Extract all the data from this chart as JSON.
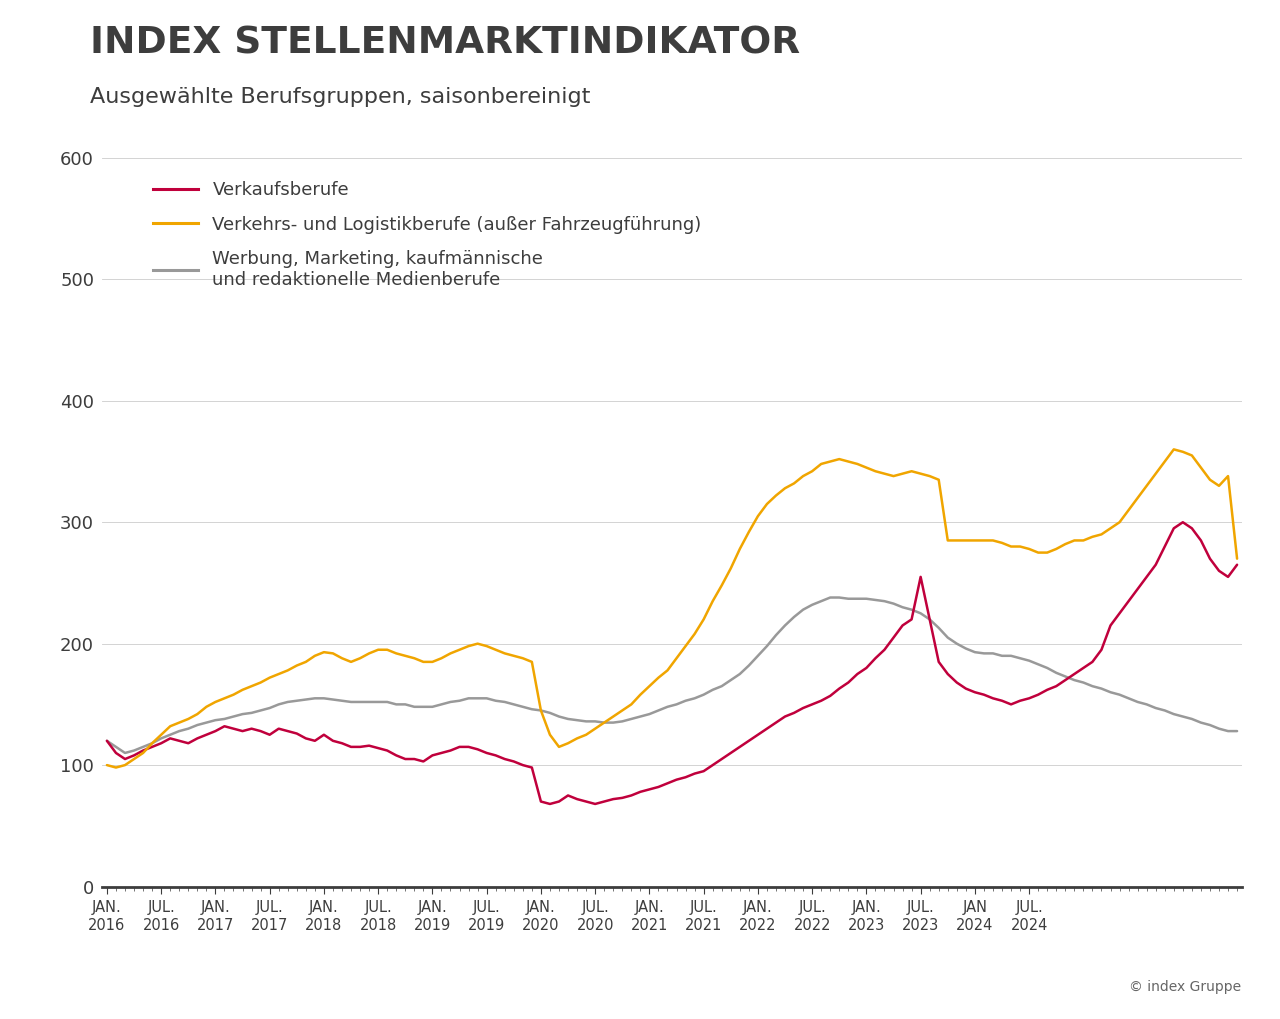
{
  "title": "INDEX STELLENMARKTINDIKATOR",
  "subtitle": "Ausgewählte Berufsgruppen, saisonbereinigt",
  "copyright": "© index Gruppe",
  "background_color": "#ffffff",
  "title_color": "#3d3d3d",
  "ylim": [
    0,
    600
  ],
  "yticks": [
    0,
    100,
    200,
    300,
    400,
    500,
    600
  ],
  "series": {
    "verkauf": {
      "label": "Verkaufsberufe",
      "color": "#c0003c",
      "linewidth": 1.8
    },
    "verkehr": {
      "label": "Verkehrs- und Logistikberufe (außer Fahrzeugführung)",
      "color": "#f0a500",
      "linewidth": 1.8
    },
    "werbung": {
      "label": "Werbung, Marketing, kaufmännische\nund redaktionelle Medienberufe",
      "color": "#999999",
      "linewidth": 1.8
    }
  },
  "xtick_labels": [
    "JAN.\n2016",
    "JUL.\n2016",
    "JAN.\n2017",
    "JUL.\n2017",
    "JAN.\n2018",
    "JUL.\n2018",
    "JAN.\n2019",
    "JUL.\n2019",
    "JAN.\n2020",
    "JUL.\n2020",
    "JAN.\n2021",
    "JUL.\n2021",
    "JAN.\n2022",
    "JUL.\n2022",
    "JAN.\n2023",
    "JUL.\n2023",
    "JAN\n2024",
    "JUL.\n2024"
  ],
  "verkauf_data": [
    120,
    110,
    105,
    108,
    112,
    115,
    118,
    122,
    120,
    118,
    122,
    125,
    128,
    132,
    130,
    128,
    130,
    128,
    125,
    130,
    128,
    126,
    122,
    120,
    125,
    120,
    118,
    115,
    115,
    116,
    114,
    112,
    108,
    105,
    105,
    103,
    108,
    110,
    112,
    115,
    115,
    113,
    110,
    108,
    105,
    103,
    100,
    98,
    70,
    68,
    70,
    75,
    72,
    70,
    68,
    70,
    72,
    73,
    75,
    78,
    80,
    82,
    85,
    88,
    90,
    93,
    95,
    100,
    105,
    110,
    115,
    120,
    125,
    130,
    135,
    140,
    143,
    147,
    150,
    153,
    157,
    163,
    168,
    175,
    180,
    188,
    195,
    205,
    215,
    220,
    255,
    220,
    185,
    175,
    168,
    163,
    160,
    158,
    155,
    153,
    150,
    153,
    155,
    158,
    162,
    165,
    170,
    175,
    180,
    185,
    195,
    215,
    225,
    235,
    245,
    255,
    265,
    280,
    295,
    300,
    295,
    285,
    270,
    260,
    255,
    265
  ],
  "verkehr_data": [
    100,
    98,
    100,
    105,
    110,
    118,
    125,
    132,
    135,
    138,
    142,
    148,
    152,
    155,
    158,
    162,
    165,
    168,
    172,
    175,
    178,
    182,
    185,
    190,
    193,
    192,
    188,
    185,
    188,
    192,
    195,
    195,
    192,
    190,
    188,
    185,
    185,
    188,
    192,
    195,
    198,
    200,
    198,
    195,
    192,
    190,
    188,
    185,
    145,
    125,
    115,
    118,
    122,
    125,
    130,
    135,
    140,
    145,
    150,
    158,
    165,
    172,
    178,
    188,
    198,
    208,
    220,
    235,
    248,
    262,
    278,
    292,
    305,
    315,
    322,
    328,
    332,
    338,
    342,
    348,
    350,
    352,
    350,
    348,
    345,
    342,
    340,
    338,
    340,
    342,
    340,
    338,
    335,
    285,
    285,
    285,
    285,
    285,
    285,
    283,
    280,
    280,
    278,
    275,
    275,
    278,
    282,
    285,
    285,
    288,
    290,
    295,
    300,
    310,
    320,
    330,
    340,
    350,
    360,
    358,
    355,
    345,
    335,
    330,
    338,
    270
  ],
  "werbung_data": [
    120,
    115,
    110,
    112,
    115,
    118,
    122,
    125,
    128,
    130,
    133,
    135,
    137,
    138,
    140,
    142,
    143,
    145,
    147,
    150,
    152,
    153,
    154,
    155,
    155,
    154,
    153,
    152,
    152,
    152,
    152,
    152,
    150,
    150,
    148,
    148,
    148,
    150,
    152,
    153,
    155,
    155,
    155,
    153,
    152,
    150,
    148,
    146,
    145,
    143,
    140,
    138,
    137,
    136,
    136,
    135,
    135,
    136,
    138,
    140,
    142,
    145,
    148,
    150,
    153,
    155,
    158,
    162,
    165,
    170,
    175,
    182,
    190,
    198,
    207,
    215,
    222,
    228,
    232,
    235,
    238,
    238,
    237,
    237,
    237,
    236,
    235,
    233,
    230,
    228,
    225,
    220,
    213,
    205,
    200,
    196,
    193,
    192,
    192,
    190,
    190,
    188,
    186,
    183,
    180,
    176,
    173,
    170,
    168,
    165,
    163,
    160,
    158,
    155,
    152,
    150,
    147,
    145,
    142,
    140,
    138,
    135,
    133,
    130,
    128,
    128
  ]
}
